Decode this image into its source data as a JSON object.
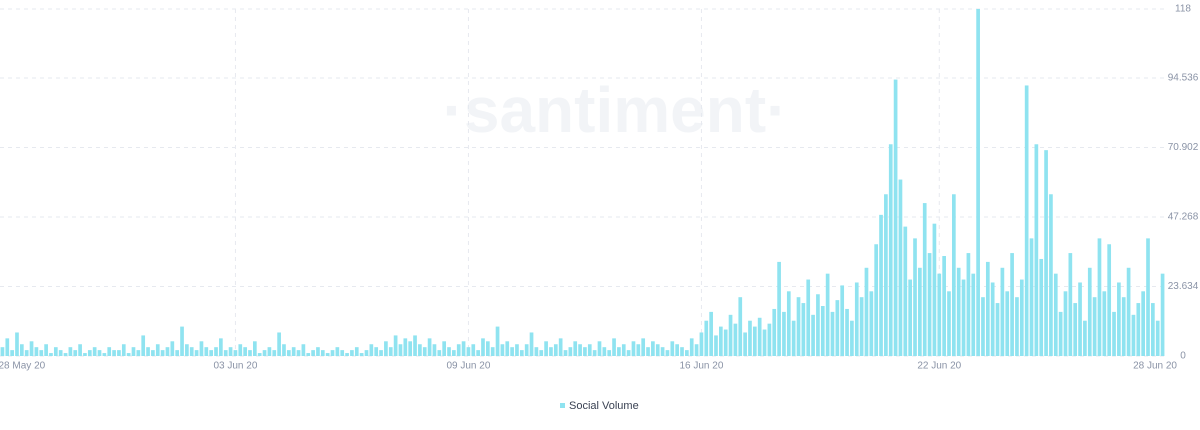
{
  "chart_data": {
    "type": "bar",
    "watermark": "·santiment·",
    "color": "#8fe3f0",
    "series": [
      {
        "name": "Social Volume",
        "color": "#8fe3f0",
        "values": [
          3,
          6,
          2,
          8,
          4,
          2,
          5,
          3,
          2,
          4,
          1,
          3,
          2,
          1,
          3,
          2,
          4,
          1,
          2,
          3,
          2,
          1,
          3,
          2,
          2,
          4,
          1,
          3,
          2,
          7,
          3,
          2,
          4,
          2,
          3,
          5,
          2,
          10,
          4,
          3,
          2,
          5,
          3,
          2,
          3,
          6,
          2,
          3,
          2,
          4,
          3,
          2,
          5,
          1,
          2,
          3,
          2,
          8,
          4,
          2,
          3,
          2,
          4,
          1,
          2,
          3,
          2,
          1,
          2,
          3,
          2,
          1,
          2,
          3,
          1,
          2,
          4,
          3,
          2,
          5,
          3,
          7,
          4,
          6,
          5,
          7,
          4,
          3,
          6,
          4,
          2,
          5,
          3,
          2,
          4,
          5,
          3,
          4,
          2,
          6,
          5,
          3,
          10,
          4,
          5,
          3,
          4,
          2,
          4,
          8,
          3,
          2,
          5,
          3,
          4,
          6,
          2,
          3,
          5,
          4,
          3,
          4,
          2,
          5,
          3,
          2,
          6,
          3,
          4,
          2,
          5,
          4,
          6,
          3,
          5,
          4,
          3,
          2,
          5,
          4,
          3,
          2,
          6,
          4,
          8,
          12,
          15,
          7,
          10,
          9,
          14,
          11,
          20,
          8,
          12,
          10,
          13,
          9,
          11,
          16,
          32,
          15,
          22,
          12,
          20,
          18,
          26,
          14,
          21,
          17,
          28,
          15,
          19,
          24,
          16,
          12,
          25,
          20,
          30,
          22,
          38,
          48,
          55,
          72,
          94,
          60,
          44,
          26,
          40,
          30,
          52,
          35,
          45,
          28,
          34,
          22,
          55,
          30,
          26,
          35,
          28,
          118,
          20,
          32,
          25,
          18,
          30,
          22,
          35,
          20,
          26,
          92,
          40,
          72,
          33,
          70,
          55,
          28,
          15,
          22,
          35,
          18,
          25,
          12,
          30,
          20,
          40,
          22,
          38,
          15,
          25,
          20,
          30,
          14,
          18,
          22,
          40,
          18,
          12,
          28
        ]
      }
    ],
    "categories": [
      null,
      null,
      null,
      null,
      "28 May 20",
      null,
      null,
      null,
      null,
      null,
      null,
      null,
      null,
      null,
      null,
      null,
      null,
      null,
      null,
      null,
      null,
      null,
      null,
      null,
      null,
      null,
      null,
      null,
      null,
      null,
      null,
      null,
      null,
      null,
      null,
      null,
      null,
      null,
      null,
      null,
      null,
      null,
      null,
      null,
      null,
      null,
      null,
      null,
      "03 Jun 20",
      null,
      null,
      null,
      null,
      null,
      null,
      null,
      null,
      null,
      null,
      null,
      null,
      null,
      null,
      null,
      null,
      null,
      null,
      null,
      null,
      null,
      null,
      null,
      null,
      null,
      null,
      null,
      null,
      null,
      null,
      null,
      null,
      null,
      null,
      null,
      null,
      null,
      null,
      null,
      null,
      null,
      null,
      null,
      null,
      null,
      null,
      null,
      "09 Jun 20",
      null,
      null,
      null,
      null,
      null,
      null,
      null,
      null,
      null,
      null,
      null,
      null,
      null,
      null,
      null,
      null,
      null,
      null,
      null,
      null,
      null,
      null,
      null,
      null,
      null,
      null,
      null,
      null,
      null,
      null,
      null,
      null,
      null,
      null,
      null,
      null,
      null,
      null,
      null,
      null,
      null,
      null,
      null,
      null,
      null,
      null,
      null,
      "16 Jun 20",
      null,
      null,
      null,
      null,
      null,
      null,
      null,
      null,
      null,
      null,
      null,
      null,
      null,
      null,
      null,
      null,
      null,
      null,
      null,
      null,
      null,
      null,
      null,
      null,
      null,
      null,
      null,
      null,
      null,
      null,
      null,
      null,
      null,
      null,
      null,
      null,
      null,
      null,
      null,
      null,
      null,
      null,
      null,
      null,
      null,
      null,
      null,
      null,
      "22 Jun 20",
      null,
      null,
      null,
      null,
      null,
      null,
      null,
      null,
      null,
      null,
      null,
      null,
      null,
      null,
      null,
      null,
      null,
      null,
      null,
      null,
      null,
      null,
      null,
      null,
      null,
      null,
      null,
      null,
      null,
      null,
      null,
      null,
      null,
      null,
      null,
      null,
      null,
      null,
      null,
      null,
      null,
      null,
      null,
      null,
      null,
      "28 Jun 20"
    ],
    "ylim": [
      0,
      118
    ],
    "yticks": [
      0,
      23.634,
      47.268,
      70.902,
      94.536,
      118
    ],
    "grid": true
  }
}
